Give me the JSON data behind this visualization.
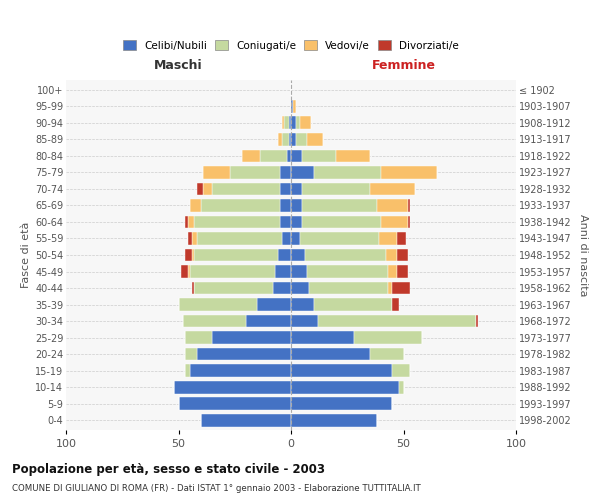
{
  "age_groups": [
    "0-4",
    "5-9",
    "10-14",
    "15-19",
    "20-24",
    "25-29",
    "30-34",
    "35-39",
    "40-44",
    "45-49",
    "50-54",
    "55-59",
    "60-64",
    "65-69",
    "70-74",
    "75-79",
    "80-84",
    "85-89",
    "90-94",
    "95-99",
    "100+"
  ],
  "birth_years": [
    "1998-2002",
    "1993-1997",
    "1988-1992",
    "1983-1987",
    "1978-1982",
    "1973-1977",
    "1968-1972",
    "1963-1967",
    "1958-1962",
    "1953-1957",
    "1948-1952",
    "1943-1947",
    "1938-1942",
    "1933-1937",
    "1928-1932",
    "1923-1927",
    "1918-1922",
    "1913-1917",
    "1908-1912",
    "1903-1907",
    "≤ 1902"
  ],
  "male_celibe": [
    40,
    50,
    52,
    45,
    42,
    35,
    20,
    15,
    8,
    7,
    6,
    4,
    5,
    5,
    5,
    5,
    2,
    1,
    1,
    0,
    0
  ],
  "male_coniugato": [
    0,
    0,
    0,
    2,
    5,
    12,
    28,
    35,
    35,
    38,
    37,
    38,
    38,
    35,
    30,
    22,
    12,
    3,
    2,
    0,
    0
  ],
  "male_vedovo": [
    0,
    0,
    0,
    0,
    0,
    0,
    0,
    0,
    0,
    1,
    1,
    2,
    3,
    5,
    4,
    12,
    8,
    2,
    1,
    0,
    0
  ],
  "male_divorziato": [
    0,
    0,
    0,
    0,
    0,
    0,
    0,
    0,
    1,
    3,
    3,
    2,
    1,
    0,
    3,
    0,
    0,
    0,
    0,
    0,
    0
  ],
  "female_nubile": [
    38,
    45,
    48,
    45,
    35,
    28,
    12,
    10,
    8,
    7,
    6,
    4,
    5,
    5,
    5,
    10,
    5,
    2,
    2,
    1,
    0
  ],
  "female_coniugata": [
    0,
    0,
    2,
    8,
    15,
    30,
    70,
    35,
    35,
    36,
    36,
    35,
    35,
    33,
    30,
    30,
    15,
    5,
    2,
    0,
    0
  ],
  "female_vedova": [
    0,
    0,
    0,
    0,
    0,
    0,
    0,
    0,
    2,
    4,
    5,
    8,
    12,
    14,
    20,
    25,
    15,
    7,
    5,
    1,
    0
  ],
  "female_divorziata": [
    0,
    0,
    0,
    0,
    0,
    0,
    1,
    3,
    8,
    5,
    5,
    4,
    1,
    1,
    0,
    0,
    0,
    0,
    0,
    0,
    0
  ],
  "color_celibe": "#4472C4",
  "color_coniugato": "#C5D9A0",
  "color_vedovo": "#F9C06A",
  "color_divorziato": "#C0392B",
  "title": "Popolazione per età, sesso e stato civile - 2003",
  "subtitle": "COMUNE DI GIULIANO DI ROMA (FR) - Dati ISTAT 1° gennaio 2003 - Elaborazione TUTTITALIA.IT",
  "xlabel_left": "Maschi",
  "xlabel_right": "Femmine",
  "ylabel_left": "Fasce di età",
  "ylabel_right": "Anni di nascita",
  "xlim": 100,
  "background_color": "#ffffff",
  "grid_color": "#cccccc"
}
